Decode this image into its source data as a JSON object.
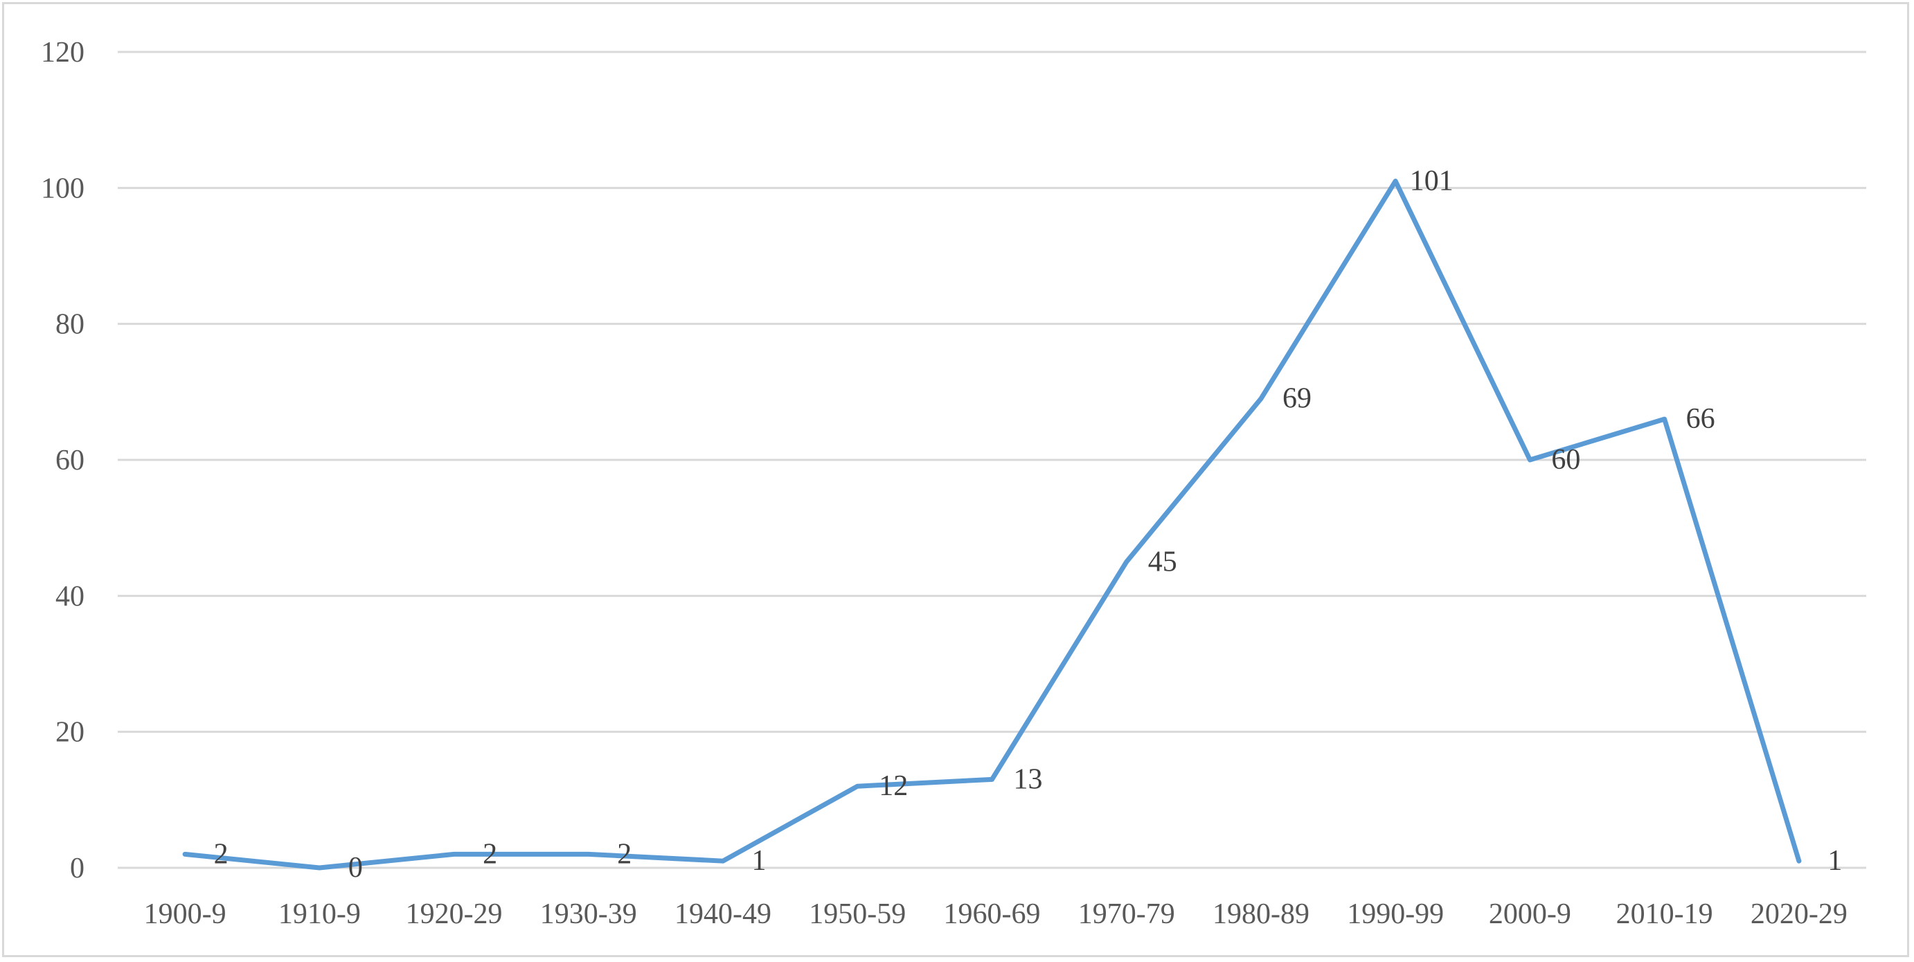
{
  "chart_data": {
    "type": "line",
    "title": "",
    "xlabel": "",
    "ylabel": "",
    "categories": [
      "1900-9",
      "1910-9",
      "1920-29",
      "1930-39",
      "1940-49",
      "1950-59",
      "1960-69",
      "1970-79",
      "1980-89",
      "1990-99",
      "2000-9",
      "2010-19",
      "2020-29"
    ],
    "series": [
      {
        "values": [
          2,
          0,
          2,
          2,
          1,
          12,
          13,
          45,
          69,
          101,
          60,
          66,
          1
        ],
        "color": "#5b9bd5"
      }
    ],
    "ylim": [
      0,
      120
    ],
    "yticks": [
      0,
      20,
      40,
      60,
      80,
      100,
      120
    ],
    "ytick_labels": [
      "0",
      "20",
      "40",
      "60",
      "80",
      "100",
      "120"
    ],
    "grid": true,
    "legend": "none",
    "data_labels": true,
    "gridline_color": "#d9d9d9"
  }
}
